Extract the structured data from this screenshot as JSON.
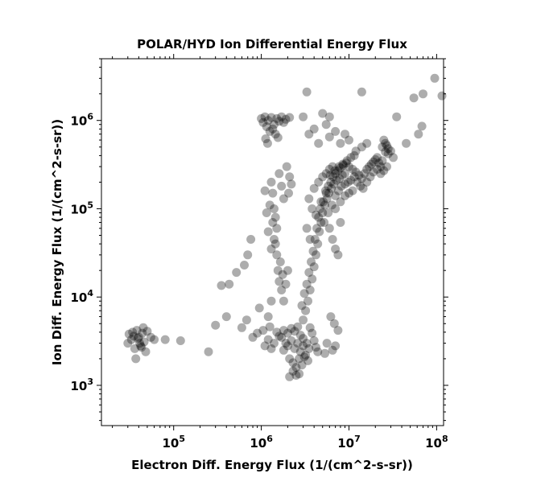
{
  "chart_data": {
    "type": "scatter",
    "title": "POLAR/HYD  Ion Differential Energy Flux",
    "xlabel": "Electron Diff. Energy Flux (1/(cm^2-s-sr))",
    "ylabel": "Ion Diff. Energy Flux (1/(cm^2-s-sr))",
    "xscale": "log",
    "yscale": "log",
    "xlim": [
      15000,
      120000000
    ],
    "ylim": [
      350,
      5000000
    ],
    "grid": false,
    "legend": "none",
    "marker_color": "#000000",
    "marker_opacity": 0.32,
    "x_ticks": [
      {
        "base": "10",
        "exp": "5",
        "value": 100000
      },
      {
        "base": "10",
        "exp": "6",
        "value": 1000000
      },
      {
        "base": "10",
        "exp": "7",
        "value": 10000000
      },
      {
        "base": "10",
        "exp": "8",
        "value": 100000000
      }
    ],
    "y_ticks": [
      {
        "base": "10",
        "exp": "3",
        "value": 1000
      },
      {
        "base": "10",
        "exp": "4",
        "value": 10000
      },
      {
        "base": "10",
        "exp": "5",
        "value": 100000
      },
      {
        "base": "10",
        "exp": "6",
        "value": 1000000
      }
    ],
    "series": [
      {
        "points": [
          [
            30000,
            3000
          ],
          [
            31000,
            3800
          ],
          [
            33000,
            3300
          ],
          [
            36000,
            2600
          ],
          [
            38000,
            4200
          ],
          [
            40000,
            3500
          ],
          [
            42000,
            2800
          ],
          [
            44000,
            3900
          ],
          [
            46000,
            3100
          ],
          [
            48000,
            2400
          ],
          [
            50000,
            4100
          ],
          [
            37000,
            2000
          ],
          [
            34000,
            4000
          ],
          [
            45000,
            4500
          ],
          [
            39000,
            3400
          ],
          [
            41000,
            3000
          ],
          [
            43000,
            2700
          ],
          [
            35000,
            3600
          ],
          [
            55000,
            3500
          ],
          [
            60000,
            3300
          ],
          [
            80000,
            3300
          ],
          [
            120000,
            3200
          ],
          [
            1000000,
            1050000
          ],
          [
            1050000,
            950000
          ],
          [
            1100000,
            1100000
          ],
          [
            1150000,
            850000
          ],
          [
            1200000,
            1000000
          ],
          [
            1300000,
            1080000
          ],
          [
            1400000,
            900000
          ],
          [
            1500000,
            1050000
          ],
          [
            1600000,
            980000
          ],
          [
            1700000,
            1100000
          ],
          [
            1800000,
            950000
          ],
          [
            1900000,
            1030000
          ],
          [
            2100000,
            1080000
          ],
          [
            1250000,
            750000
          ],
          [
            1120000,
            620000
          ],
          [
            1180000,
            550000
          ],
          [
            1350000,
            800000
          ],
          [
            1450000,
            700000
          ],
          [
            1550000,
            640000
          ],
          [
            1300000,
            200000
          ],
          [
            1350000,
            150000
          ],
          [
            1400000,
            100000
          ],
          [
            1450000,
            80000
          ],
          [
            1500000,
            60000
          ],
          [
            1600000,
            250000
          ],
          [
            1700000,
            180000
          ],
          [
            1800000,
            130000
          ],
          [
            1400000,
            45000
          ],
          [
            1500000,
            30000
          ],
          [
            1550000,
            20000
          ],
          [
            1600000,
            15000
          ],
          [
            1700000,
            12000
          ],
          [
            1800000,
            9000
          ],
          [
            1250000,
            110000
          ],
          [
            1350000,
            70000
          ],
          [
            1450000,
            40000
          ],
          [
            1650000,
            25000
          ],
          [
            1750000,
            18000
          ],
          [
            1900000,
            14000
          ],
          [
            1100000,
            160000
          ],
          [
            1150000,
            90000
          ],
          [
            1200000,
            55000
          ],
          [
            1300000,
            35000
          ],
          [
            2000000,
            20000
          ],
          [
            2100000,
            230000
          ],
          [
            2200000,
            190000
          ],
          [
            1950000,
            300000
          ],
          [
            2050000,
            150000
          ],
          [
            1500000,
            4000
          ],
          [
            1700000,
            3500
          ],
          [
            1900000,
            3000
          ],
          [
            2000000,
            2800
          ],
          [
            2200000,
            3200
          ],
          [
            2400000,
            2600
          ],
          [
            2600000,
            3000
          ],
          [
            2800000,
            2400
          ],
          [
            3000000,
            2800
          ],
          [
            3200000,
            2200
          ],
          [
            1800000,
            2500
          ],
          [
            2100000,
            2000
          ],
          [
            2300000,
            1800
          ],
          [
            2500000,
            1600
          ],
          [
            2700000,
            2000
          ],
          [
            2900000,
            1700
          ],
          [
            3100000,
            2100
          ],
          [
            1600000,
            3600
          ],
          [
            1800000,
            4200
          ],
          [
            2000000,
            3900
          ],
          [
            2200000,
            4400
          ],
          [
            2400000,
            4100
          ],
          [
            2600000,
            4600
          ],
          [
            2800000,
            3700
          ],
          [
            3000000,
            3400
          ],
          [
            3300000,
            3000
          ],
          [
            3500000,
            2600
          ],
          [
            1400000,
            3000
          ],
          [
            1300000,
            2600
          ],
          [
            1200000,
            3300
          ],
          [
            2500000,
            1300
          ],
          [
            2100000,
            1250
          ],
          [
            2700000,
            1350
          ],
          [
            2300000,
            1450
          ],
          [
            3400000,
            1900
          ],
          [
            1100000,
            2800
          ],
          [
            1050000,
            4200
          ],
          [
            1250000,
            4600
          ],
          [
            900000,
            3900
          ],
          [
            800000,
            3500
          ],
          [
            3600000,
            4500
          ],
          [
            3800000,
            3900
          ],
          [
            4000000,
            3200
          ],
          [
            4200000,
            2700
          ],
          [
            4400000,
            2400
          ],
          [
            3000000,
            5500
          ],
          [
            3200000,
            7000
          ],
          [
            3400000,
            9000
          ],
          [
            3600000,
            12000
          ],
          [
            3800000,
            16000
          ],
          [
            4000000,
            22000
          ],
          [
            4200000,
            30000
          ],
          [
            4400000,
            40000
          ],
          [
            4600000,
            55000
          ],
          [
            4800000,
            70000
          ],
          [
            5000000,
            90000
          ],
          [
            5300000,
            110000
          ],
          [
            5600000,
            130000
          ],
          [
            5900000,
            150000
          ],
          [
            6300000,
            170000
          ],
          [
            6700000,
            190000
          ],
          [
            7200000,
            210000
          ],
          [
            7800000,
            220000
          ],
          [
            8400000,
            240000
          ],
          [
            9000000,
            250000
          ],
          [
            2900000,
            8000
          ],
          [
            3100000,
            11000
          ],
          [
            3300000,
            14000
          ],
          [
            3500000,
            19000
          ],
          [
            3700000,
            25000
          ],
          [
            3900000,
            33000
          ],
          [
            4100000,
            45000
          ],
          [
            4300000,
            60000
          ],
          [
            4500000,
            80000
          ],
          [
            4700000,
            100000
          ],
          [
            5100000,
            120000
          ],
          [
            5500000,
            150000
          ],
          [
            5800000,
            180000
          ],
          [
            6200000,
            200000
          ],
          [
            6600000,
            230000
          ],
          [
            7000000,
            250000
          ],
          [
            7500000,
            270000
          ],
          [
            8000000,
            290000
          ],
          [
            8600000,
            310000
          ],
          [
            9300000,
            330000
          ],
          [
            10000000,
            300000
          ],
          [
            11000000,
            280000
          ],
          [
            12000000,
            260000
          ],
          [
            13000000,
            240000
          ],
          [
            14000000,
            220000
          ],
          [
            15000000,
            250000
          ],
          [
            16000000,
            280000
          ],
          [
            17000000,
            300000
          ],
          [
            18000000,
            320000
          ],
          [
            19000000,
            340000
          ],
          [
            20000000,
            360000
          ],
          [
            21000000,
            380000
          ],
          [
            22000000,
            330000
          ],
          [
            23000000,
            300000
          ],
          [
            24000000,
            350000
          ],
          [
            4000000,
            170000
          ],
          [
            4500000,
            200000
          ],
          [
            5000000,
            230000
          ],
          [
            5500000,
            250000
          ],
          [
            6000000,
            280000
          ],
          [
            6500000,
            300000
          ],
          [
            3500000,
            130000
          ],
          [
            3800000,
            100000
          ],
          [
            3300000,
            60000
          ],
          [
            3600000,
            45000
          ],
          [
            5200000,
            70000
          ],
          [
            5800000,
            90000
          ],
          [
            6400000,
            110000
          ],
          [
            7000000,
            140000
          ],
          [
            7600000,
            160000
          ],
          [
            8200000,
            180000
          ],
          [
            9000000,
            190000
          ],
          [
            9800000,
            200000
          ],
          [
            10500000,
            210000
          ],
          [
            11500000,
            230000
          ],
          [
            12500000,
            200000
          ],
          [
            13500000,
            180000
          ],
          [
            14500000,
            170000
          ],
          [
            16000000,
            200000
          ],
          [
            17500000,
            230000
          ],
          [
            19000000,
            260000
          ],
          [
            21000000,
            280000
          ],
          [
            23000000,
            250000
          ],
          [
            25000000,
            270000
          ],
          [
            27000000,
            300000
          ],
          [
            4200000,
            85000
          ],
          [
            4800000,
            120000
          ],
          [
            5400000,
            160000
          ],
          [
            6100000,
            240000
          ],
          [
            6900000,
            270000
          ],
          [
            7700000,
            300000
          ],
          [
            8500000,
            320000
          ],
          [
            9500000,
            350000
          ],
          [
            10500000,
            380000
          ],
          [
            11500000,
            400000
          ],
          [
            7000000,
            100000
          ],
          [
            8000000,
            120000
          ],
          [
            9000000,
            140000
          ],
          [
            10000000,
            150000
          ],
          [
            11000000,
            160000
          ],
          [
            6000000,
            60000
          ],
          [
            6500000,
            45000
          ],
          [
            7000000,
            35000
          ],
          [
            7500000,
            30000
          ],
          [
            8000000,
            70000
          ],
          [
            25000000,
            600000
          ],
          [
            26000000,
            550000
          ],
          [
            27000000,
            520000
          ],
          [
            28000000,
            480000
          ],
          [
            24000000,
            500000
          ],
          [
            30000000,
            450000
          ],
          [
            28000000,
            420000
          ],
          [
            32000000,
            380000
          ],
          [
            26000000,
            440000
          ],
          [
            3000000,
            1100000
          ],
          [
            3500000,
            700000
          ],
          [
            4000000,
            800000
          ],
          [
            5000000,
            1200000
          ],
          [
            6000000,
            1100000
          ],
          [
            5500000,
            900000
          ],
          [
            4500000,
            550000
          ],
          [
            6000000,
            650000
          ],
          [
            7000000,
            750000
          ],
          [
            8000000,
            550000
          ],
          [
            9000000,
            700000
          ],
          [
            10000000,
            600000
          ],
          [
            12000000,
            450000
          ],
          [
            14000000,
            500000
          ],
          [
            16000000,
            550000
          ],
          [
            3300000,
            2100000
          ],
          [
            14000000,
            2100000
          ],
          [
            35000000,
            1100000
          ],
          [
            45000000,
            550000
          ],
          [
            55000000,
            1800000
          ],
          [
            62000000,
            700000
          ],
          [
            68000000,
            860000
          ],
          [
            70000000,
            2000000
          ],
          [
            95000000,
            3000000
          ],
          [
            115000000,
            1900000
          ],
          [
            350000,
            13500
          ],
          [
            430000,
            14000
          ],
          [
            520000,
            19000
          ],
          [
            640000,
            23000
          ],
          [
            700000,
            30000
          ],
          [
            760000,
            45000
          ],
          [
            600000,
            4500
          ],
          [
            680000,
            5500
          ],
          [
            950000,
            7500
          ],
          [
            1200000,
            6000
          ],
          [
            1300000,
            9000
          ],
          [
            400000,
            6000
          ],
          [
            300000,
            4800
          ],
          [
            250000,
            2400
          ],
          [
            6200000,
            6000
          ],
          [
            6800000,
            5000
          ],
          [
            7500000,
            4200
          ],
          [
            7000000,
            2800
          ],
          [
            6500000,
            2500
          ],
          [
            5600000,
            3000
          ],
          [
            5300000,
            2300
          ]
        ]
      }
    ]
  }
}
